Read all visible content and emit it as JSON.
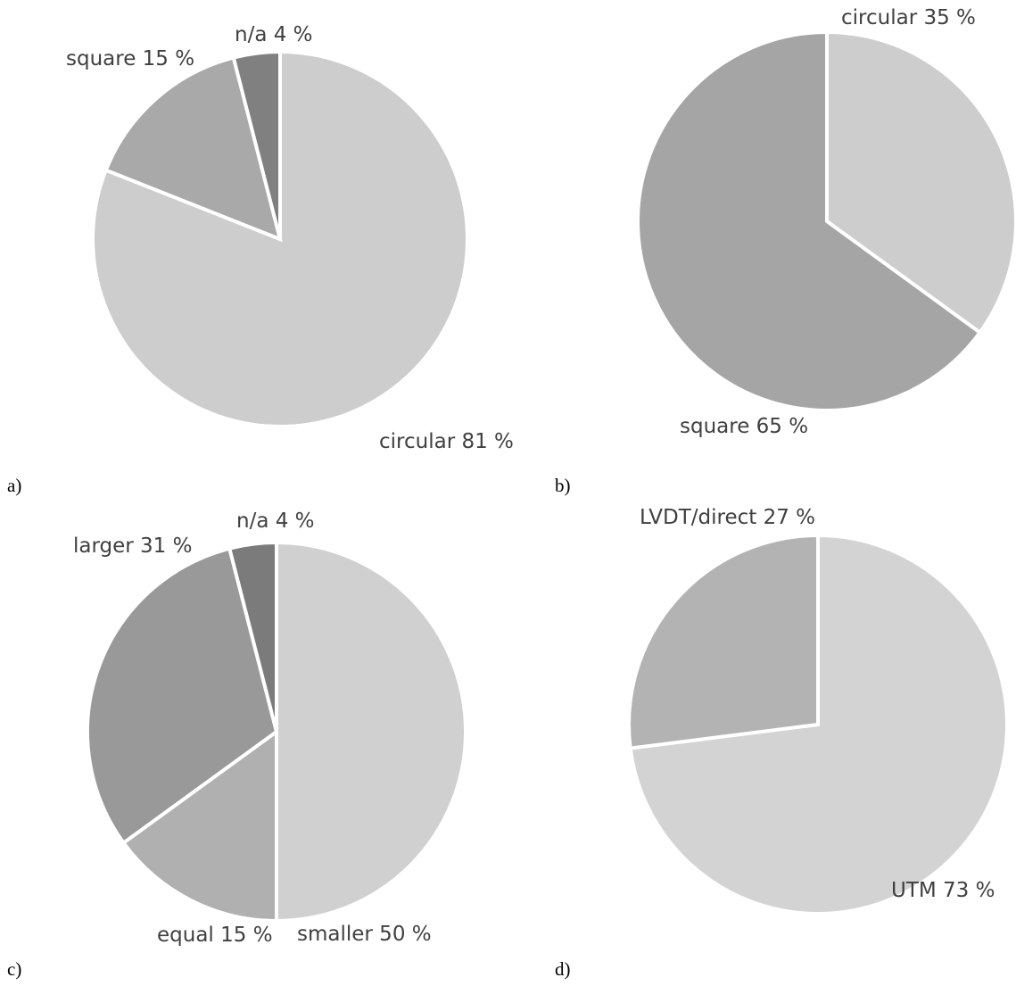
{
  "chart_data": [
    {
      "type": "pie",
      "panel_label": "a)",
      "slices": [
        {
          "label": "circular 81 %",
          "value": 81,
          "color": "#cdcdcd"
        },
        {
          "label": "square 15 %",
          "value": 15,
          "color": "#a9a9a9"
        },
        {
          "label": "n/a 4 %",
          "value": 4,
          "color": "#808080"
        }
      ]
    },
    {
      "type": "pie",
      "panel_label": "b)",
      "slices": [
        {
          "label": "circular 35 %",
          "value": 35,
          "color": "#cdcdcd"
        },
        {
          "label": "square 65 %",
          "value": 65,
          "color": "#a5a5a5"
        }
      ]
    },
    {
      "type": "pie",
      "panel_label": "c)",
      "slices": [
        {
          "label": "smaller 50 %",
          "value": 50,
          "color": "#d0d0d0"
        },
        {
          "label": "equal 15 %",
          "value": 15,
          "color": "#b0b0b0"
        },
        {
          "label": "larger 31 %",
          "value": 31,
          "color": "#999999"
        },
        {
          "label": "n/a 4 %",
          "value": 4,
          "color": "#7b7b7b"
        }
      ]
    },
    {
      "type": "pie",
      "panel_label": "d)",
      "slices": [
        {
          "label": "UTM 73 %",
          "value": 73,
          "color": "#d3d3d3"
        },
        {
          "label": "LVDT/direct 27 %",
          "value": 27,
          "color": "#b3b3b3"
        }
      ]
    }
  ]
}
